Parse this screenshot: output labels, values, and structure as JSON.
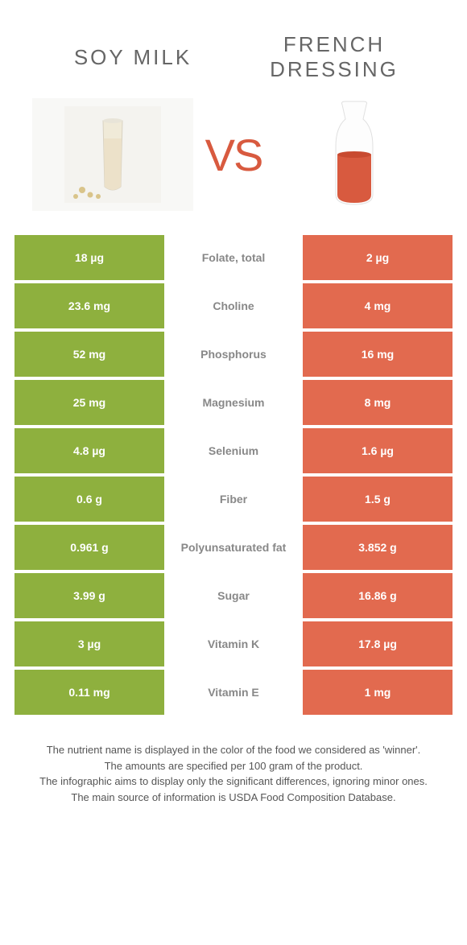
{
  "colors": {
    "left": "#8eb03e",
    "right": "#e26a4f",
    "vs": "#d85a3f",
    "title": "#666666",
    "footer_text": "#555555",
    "background": "#ffffff"
  },
  "header": {
    "left_title": "Soy milk",
    "right_title": "French dressing"
  },
  "vs_label": "VS",
  "rows": [
    {
      "left": "18 µg",
      "label": "Folate, total",
      "right": "2 µg",
      "winner": "left"
    },
    {
      "left": "23.6 mg",
      "label": "Choline",
      "right": "4 mg",
      "winner": "left"
    },
    {
      "left": "52 mg",
      "label": "Phosphorus",
      "right": "16 mg",
      "winner": "left"
    },
    {
      "left": "25 mg",
      "label": "Magnesium",
      "right": "8 mg",
      "winner": "left"
    },
    {
      "left": "4.8 µg",
      "label": "Selenium",
      "right": "1.6 µg",
      "winner": "left"
    },
    {
      "left": "0.6 g",
      "label": "Fiber",
      "right": "1.5 g",
      "winner": "right"
    },
    {
      "left": "0.961 g",
      "label": "Polyunsaturated fat",
      "right": "3.852 g",
      "winner": "right"
    },
    {
      "left": "3.99 g",
      "label": "Sugar",
      "right": "16.86 g",
      "winner": "right"
    },
    {
      "left": "3 µg",
      "label": "Vitamin K",
      "right": "17.8 µg",
      "winner": "right"
    },
    {
      "left": "0.11 mg",
      "label": "Vitamin E",
      "right": "1 mg",
      "winner": "right"
    }
  ],
  "footer": {
    "line1": "The nutrient name is displayed in the color of the food we considered as 'winner'.",
    "line2": "The amounts are specified per 100 gram of the product.",
    "line3": "The infographic aims to display only the significant differences, ignoring minor ones.",
    "line4": "The main source of information is USDA Food Composition Database."
  }
}
